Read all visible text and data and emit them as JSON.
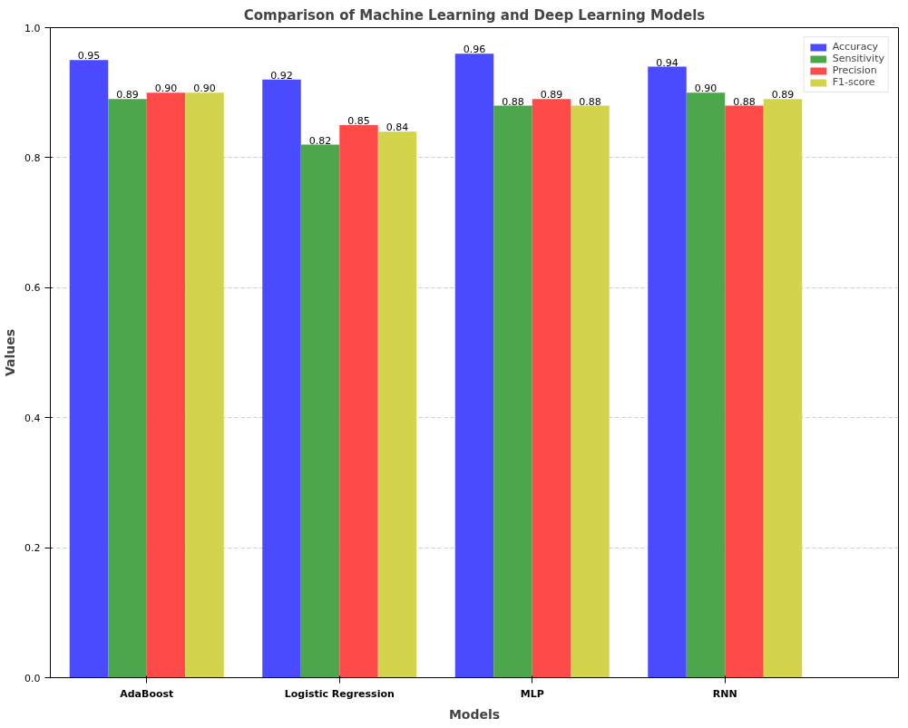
{
  "chart_data": {
    "type": "bar",
    "title": "Comparison of Machine Learning and Deep Learning Models",
    "xlabel": "Models",
    "ylabel": "Values",
    "categories": [
      "AdaBoost",
      "Logistic Regression",
      "MLP",
      "RNN"
    ],
    "series": [
      {
        "name": "Accuracy",
        "color": "#4a4aff",
        "values": [
          0.95,
          0.92,
          0.96,
          0.94
        ],
        "value_labels": [
          "0.95",
          "0.92",
          "0.96",
          "0.94"
        ]
      },
      {
        "name": "Sensitivity",
        "color": "#4ca64c",
        "values": [
          0.89,
          0.82,
          0.88,
          0.9
        ],
        "value_labels": [
          "0.89",
          "0.82",
          "0.88",
          "0.90"
        ]
      },
      {
        "name": "Precision",
        "color": "#ff4a4a",
        "values": [
          0.9,
          0.85,
          0.89,
          0.88
        ],
        "value_labels": [
          "0.90",
          "0.85",
          "0.89",
          "0.88"
        ]
      },
      {
        "name": "F1-score",
        "color": "#d4d44c",
        "values": [
          0.9,
          0.84,
          0.88,
          0.89
        ],
        "value_labels": [
          "0.90",
          "0.84",
          "0.88",
          "0.89"
        ]
      }
    ],
    "ylim": [
      0,
      1
    ],
    "yticks": [
      {
        "value": 0,
        "label": "0.0"
      },
      {
        "value": 0.2,
        "label": "0.2"
      },
      {
        "value": 0.4,
        "label": "0.4"
      },
      {
        "value": 0.6,
        "label": "0.6"
      },
      {
        "value": 0.8,
        "label": "0.8"
      },
      {
        "value": 1,
        "label": "1.0"
      }
    ],
    "grid": "y",
    "legend": "top right"
  }
}
